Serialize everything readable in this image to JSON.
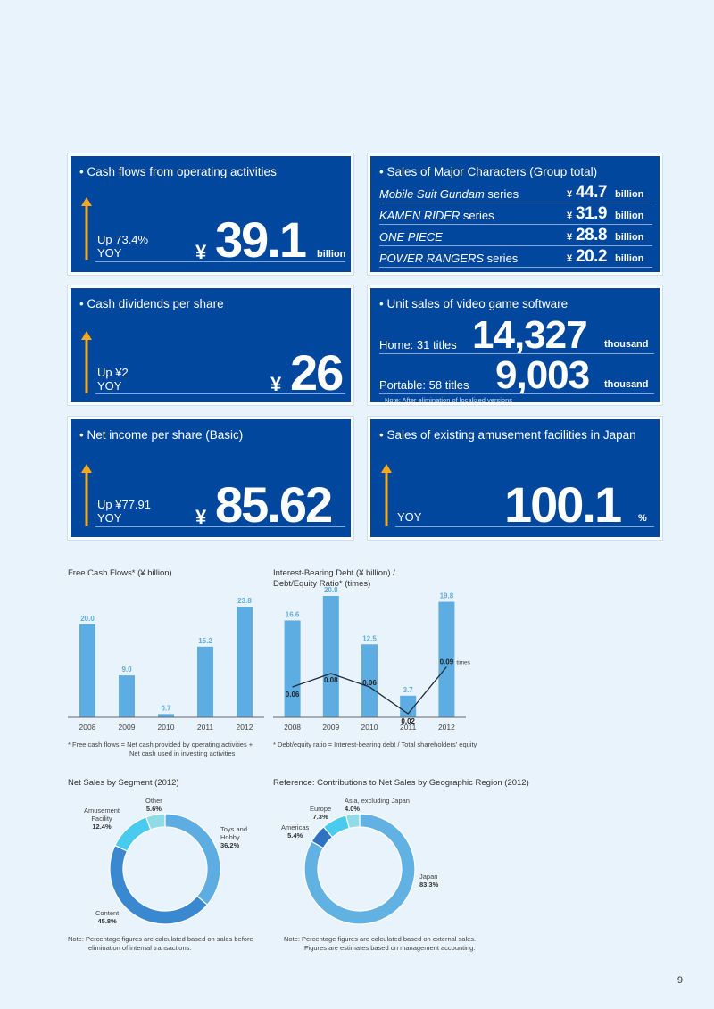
{
  "cards": {
    "cash_flows": {
      "title": "Cash flows from operating activities",
      "change": "Up 73.4%",
      "yoy": "YOY",
      "yen": "¥",
      "value": "39.1",
      "unit": "billion"
    },
    "dividends": {
      "title": "Cash dividends per share",
      "change": "Up ¥2",
      "yoy": "YOY",
      "yen": "¥",
      "value": "26"
    },
    "net_income": {
      "title": "Net income per share (Basic)",
      "change": "Up ¥77.91",
      "yoy": "YOY",
      "yen": "¥",
      "value": "85.62"
    },
    "characters": {
      "title": "Sales of Major Characters (Group total)",
      "rows": [
        {
          "name_italic": "Mobile Suit Gundam",
          "name_rest": " series",
          "yen": "¥",
          "value": "44.7",
          "unit": "billion"
        },
        {
          "name_italic": "KAMEN RIDER",
          "name_rest": " series",
          "yen": "¥",
          "value": "31.9",
          "unit": "billion"
        },
        {
          "name_italic": "ONE PIECE",
          "name_rest": "",
          "yen": "¥",
          "value": "28.8",
          "unit": "billion"
        },
        {
          "name_italic": "POWER RANGERS",
          "name_rest": " series",
          "yen": "¥",
          "value": "20.2",
          "unit": "billion"
        }
      ]
    },
    "game_software": {
      "title": "Unit sales of video game software",
      "home_label": "Home: 31 titles",
      "home_value": "14,327",
      "home_unit": "thousand",
      "portable_label": "Portable: 58 titles",
      "portable_value": "9,003",
      "portable_unit": "thousand",
      "note": "Note: After elimination of localized versions"
    },
    "amusement": {
      "title": "Sales of existing amusement facilities in Japan",
      "yoy": "YOY",
      "value": "100.1",
      "unit": "%"
    }
  },
  "chart_data": [
    {
      "type": "bar",
      "title": "Free Cash Flows* (¥ billion)",
      "categories": [
        "2008",
        "2009",
        "2010",
        "2011",
        "2012"
      ],
      "values": [
        20.0,
        9.0,
        0.7,
        15.2,
        23.8
      ],
      "value_labels": [
        "20.0",
        "9.0",
        "0.7",
        "15.2",
        "23.8"
      ],
      "ylim": [
        0,
        25
      ],
      "footnote_line1": "* Free cash flows = Net cash provided by operating activities +",
      "footnote_line2": "Net cash used in investing activities"
    },
    {
      "type": "bar+line",
      "title_line1": "Interest-Bearing Debt (¥ billion) /",
      "title_line2": "Debt/Equity Ratio* (times)",
      "categories": [
        "2008",
        "2009",
        "2010",
        "2011",
        "2012"
      ],
      "series": [
        {
          "name": "Interest-Bearing Debt",
          "values": [
            16.6,
            20.8,
            12.5,
            3.7,
            19.8
          ],
          "labels": [
            "16.6",
            "20.8",
            "12.5",
            "3.7",
            "19.8"
          ]
        },
        {
          "name": "Debt/Equity Ratio",
          "values": [
            0.06,
            0.08,
            0.06,
            0.02,
            0.09
          ],
          "labels": [
            "0.06",
            "0.08",
            "0.06",
            "0.02",
            "0.09"
          ]
        }
      ],
      "ratio_unit": "times",
      "ylim": [
        0,
        25
      ],
      "ratio_lim": [
        0,
        0.2
      ],
      "footnote": "* Debt/equity ratio = Interest-bearing debt / Total shareholders' equity"
    },
    {
      "type": "pie",
      "title": "Net Sales by Segment (2012)",
      "slices": [
        {
          "name": "Toys and Hobby",
          "value": 36.2,
          "label": "36.2%",
          "color": "#5dade2"
        },
        {
          "name": "Content",
          "value": 45.8,
          "label": "45.8%",
          "color": "#3a88d0"
        },
        {
          "name": "Amusement Facility",
          "value": 12.4,
          "label": "12.4%",
          "color": "#48cbef"
        },
        {
          "name": "Other",
          "value": 5.6,
          "label": "5.6%",
          "color": "#8fdbe8"
        }
      ],
      "note_line1": "Note: Percentage figures are calculated based on sales before",
      "note_line2": "elimination of internal transactions."
    },
    {
      "type": "pie",
      "title": "Reference: Contributions to Net Sales by Geographic Region (2012)",
      "slices": [
        {
          "name": "Japan",
          "value": 83.3,
          "label": "83.3%",
          "color": "#62b1e3"
        },
        {
          "name": "Americas",
          "value": 5.4,
          "label": "5.4%",
          "color": "#2f72c2"
        },
        {
          "name": "Europe",
          "value": 7.3,
          "label": "7.3%",
          "color": "#48cbef"
        },
        {
          "name": "Asia, excluding Japan",
          "value": 4.0,
          "label": "4.0%",
          "color": "#8fdbe8"
        }
      ],
      "note_line1": "Note: Percentage figures are calculated based on external sales.",
      "note_line2": "Figures are estimates based on management accounting."
    }
  ],
  "colors": {
    "card_bg": "#00479d",
    "bar": "#5dade2",
    "line": "#1f2b3a"
  },
  "page_number": "9"
}
